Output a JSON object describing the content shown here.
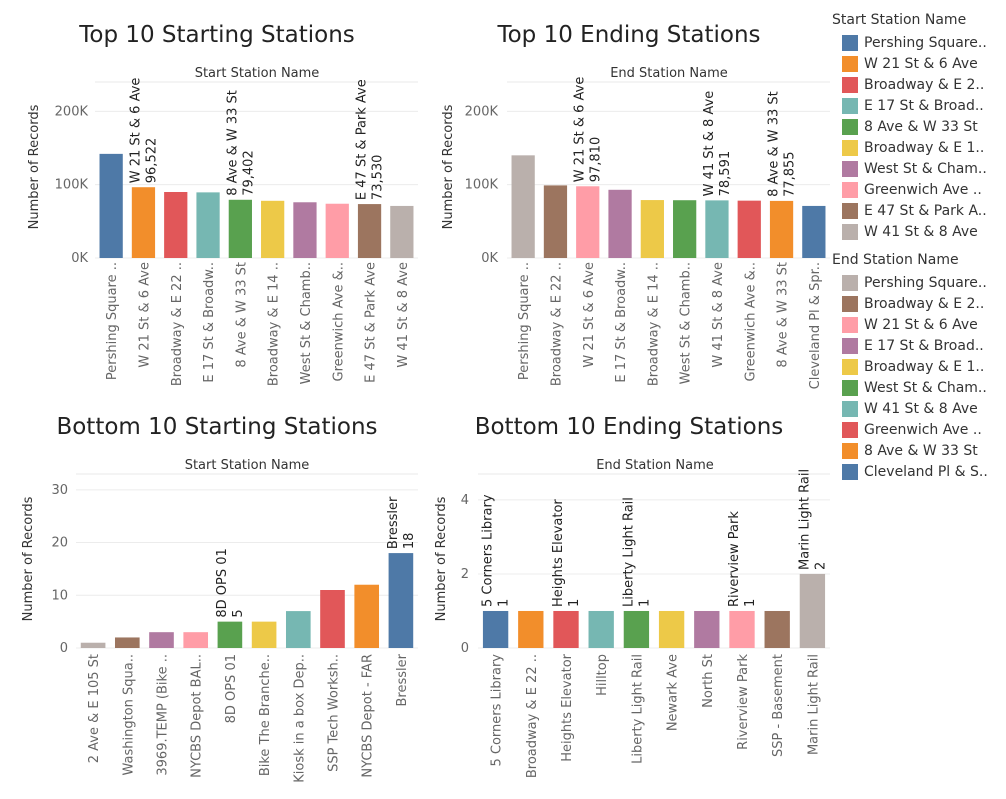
{
  "colors": {
    "blue": "#4e79a7",
    "orange": "#f28e2b",
    "red": "#e15759",
    "teal": "#76b7b2",
    "green": "#59a14f",
    "yellow": "#edc948",
    "purple": "#b07aa1",
    "pink": "#ff9da7",
    "brown": "#9c755f",
    "gray": "#bab0ac"
  },
  "legend_start": {
    "title": "Start Station Name",
    "items": [
      {
        "label": "Pershing Square..",
        "color": "#4e79a7"
      },
      {
        "label": "W 21 St & 6 Ave",
        "color": "#f28e2b"
      },
      {
        "label": "Broadway & E 2..",
        "color": "#e15759"
      },
      {
        "label": "E 17 St & Broad..",
        "color": "#76b7b2"
      },
      {
        "label": "8 Ave & W 33 St",
        "color": "#59a14f"
      },
      {
        "label": "Broadway & E 1..",
        "color": "#edc948"
      },
      {
        "label": "West St & Cham..",
        "color": "#b07aa1"
      },
      {
        "label": "Greenwich Ave ..",
        "color": "#ff9da7"
      },
      {
        "label": "E 47 St & Park A..",
        "color": "#9c755f"
      },
      {
        "label": "W 41 St & 8 Ave",
        "color": "#bab0ac"
      }
    ]
  },
  "legend_end": {
    "title": "End Station Name",
    "items": [
      {
        "label": "Pershing Square..",
        "color": "#bab0ac"
      },
      {
        "label": "Broadway & E 2..",
        "color": "#9c755f"
      },
      {
        "label": "W 21 St & 6 Ave",
        "color": "#ff9da7"
      },
      {
        "label": "E 17 St & Broad..",
        "color": "#b07aa1"
      },
      {
        "label": "Broadway & E 1..",
        "color": "#edc948"
      },
      {
        "label": "West St & Cham..",
        "color": "#59a14f"
      },
      {
        "label": "W 41 St & 8 Ave",
        "color": "#76b7b2"
      },
      {
        "label": "Greenwich Ave ..",
        "color": "#e15759"
      },
      {
        "label": "8 Ave & W 33 St",
        "color": "#f28e2b"
      },
      {
        "label": "Cleveland Pl & S..",
        "color": "#4e79a7"
      }
    ]
  },
  "chart_data": [
    {
      "type": "bar",
      "title": "Top 10  Starting Stations",
      "xlabel": "Start Station Name",
      "ylabel": "Number of Records",
      "ylim": [
        0,
        240000
      ],
      "yticks": [
        0,
        100000,
        200000
      ],
      "ytick_labels": [
        "0K",
        "100K",
        "200K"
      ],
      "categories": [
        "Pershing Square ..",
        "W 21 St & 6 Ave",
        "Broadway & E 22 ..",
        "E 17 St & Broadw..",
        "8 Ave & W 33 St",
        "Broadway & E 14 ..",
        "West St & Chamb..",
        "Greenwich Ave &..",
        "E 47 St & Park Ave",
        "W 41 St & 8 Ave"
      ],
      "values": [
        142000,
        96522,
        90000,
        89500,
        79402,
        78000,
        76000,
        74000,
        73530,
        71000
      ],
      "colors": [
        "#4e79a7",
        "#f28e2b",
        "#e15759",
        "#76b7b2",
        "#59a14f",
        "#edc948",
        "#b07aa1",
        "#ff9da7",
        "#9c755f",
        "#bab0ac"
      ],
      "annotations": [
        {
          "index": 1,
          "name": "W 21 St & 6 Ave",
          "value": "96,522"
        },
        {
          "index": 4,
          "name": "8 Ave & W 33 St",
          "value": "79,402"
        },
        {
          "index": 8,
          "name": "E 47 St & Park Ave",
          "value": "73,530"
        }
      ]
    },
    {
      "type": "bar",
      "title": "Top 10  Ending Stations",
      "xlabel": "End Station Name",
      "ylabel": "Number of Records",
      "ylim": [
        0,
        240000
      ],
      "yticks": [
        0,
        100000,
        200000
      ],
      "ytick_labels": [
        "0K",
        "100K",
        "200K"
      ],
      "categories": [
        "Pershing Square ..",
        "Broadway & E 22 ..",
        "W 21 St & 6 Ave",
        "E 17 St & Broadw..",
        "Broadway & E 14 ..",
        "West St & Chamb..",
        "W 41 St & 8 Ave",
        "Greenwich Ave &..",
        "8 Ave & W 33 St",
        "Cleveland Pl & Spr.."
      ],
      "values": [
        140000,
        99000,
        97810,
        93000,
        79000,
        78800,
        78591,
        78200,
        77855,
        71000
      ],
      "colors": [
        "#bab0ac",
        "#9c755f",
        "#ff9da7",
        "#b07aa1",
        "#edc948",
        "#59a14f",
        "#76b7b2",
        "#e15759",
        "#f28e2b",
        "#4e79a7"
      ],
      "annotations": [
        {
          "index": 2,
          "name": "W 21 St & 6 Ave",
          "value": "97,810"
        },
        {
          "index": 6,
          "name": "W 41 St & 8 Ave",
          "value": "78,591"
        },
        {
          "index": 8,
          "name": "8 Ave & W 33 St",
          "value": "77,855"
        }
      ]
    },
    {
      "type": "bar",
      "title": "Bottom 10  Starting Stations",
      "xlabel": "Start Station Name",
      "ylabel": "Number of Records",
      "ylim": [
        0,
        33
      ],
      "yticks": [
        0,
        10,
        20,
        30
      ],
      "ytick_labels": [
        "0",
        "10",
        "20",
        "30"
      ],
      "categories": [
        "2 Ave & E 105 St",
        "Washington Squa..",
        "3969.TEMP (Bike ..",
        "NYCBS Depot BAL..",
        "8D OPS 01",
        "Bike The Branche..",
        "Kiosk in a box Dep..",
        "SSP Tech Worksh..",
        "NYCBS Depot - FAR",
        "Bressler"
      ],
      "values": [
        1,
        2,
        3,
        3,
        5,
        5,
        7,
        11,
        12,
        18
      ],
      "colors": [
        "#bab0ac",
        "#9c755f",
        "#b07aa1",
        "#ff9da7",
        "#59a14f",
        "#edc948",
        "#76b7b2",
        "#e15759",
        "#f28e2b",
        "#4e79a7"
      ],
      "annotations": [
        {
          "index": 4,
          "name": "8D OPS 01",
          "value": "5"
        },
        {
          "index": 9,
          "name": "Bressler",
          "value": "18"
        }
      ]
    },
    {
      "type": "bar",
      "title": "Bottom 10  Ending Stations",
      "xlabel": "End Station Name",
      "ylabel": "Number of Records",
      "ylim": [
        0,
        4.7
      ],
      "yticks": [
        0,
        2,
        4
      ],
      "ytick_labels": [
        "0",
        "2",
        "4"
      ],
      "categories": [
        "5 Corners Library",
        "Broadway & E 22 ..",
        "Heights Elevator",
        "Hilltop",
        "Liberty Light Rail",
        "Newark Ave",
        "North St",
        "Riverview Park",
        "SSP - Basement",
        "Marin Light Rail"
      ],
      "values": [
        1,
        1,
        1,
        1,
        1,
        1,
        1,
        1,
        1,
        2
      ],
      "colors": [
        "#4e79a7",
        "#f28e2b",
        "#e15759",
        "#76b7b2",
        "#59a14f",
        "#edc948",
        "#b07aa1",
        "#ff9da7",
        "#9c755f",
        "#bab0ac"
      ],
      "annotations": [
        {
          "index": 0,
          "name": "5 Corners Library",
          "value": "1"
        },
        {
          "index": 2,
          "name": "Heights Elevator",
          "value": "1"
        },
        {
          "index": 4,
          "name": "Liberty Light Rail",
          "value": "1"
        },
        {
          "index": 7,
          "name": "Riverview Park",
          "value": "1"
        },
        {
          "index": 9,
          "name": "Marin Light Rail",
          "value": "2"
        }
      ]
    }
  ]
}
